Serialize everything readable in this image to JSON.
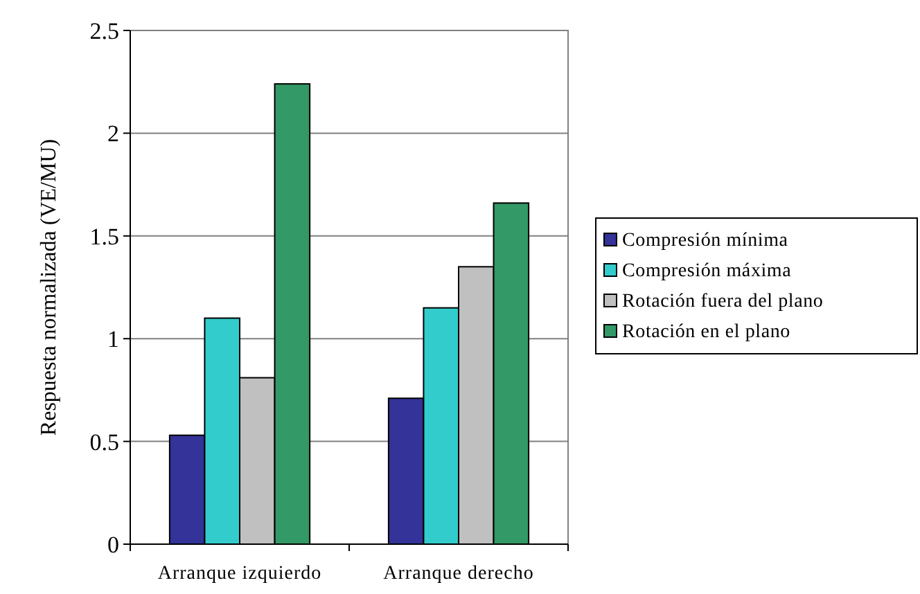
{
  "chart_data": {
    "type": "bar",
    "ylabel": "Respuesta normalizada (VE/MU)",
    "categories": [
      "Arranque izquierdo",
      "Arranque derecho"
    ],
    "series": [
      {
        "name": "Compresión mínima",
        "color": "#333399",
        "values": [
          0.53,
          0.71
        ]
      },
      {
        "name": "Compresión máxima",
        "color": "#33cccc",
        "values": [
          1.1,
          1.15
        ]
      },
      {
        "name": "Rotación fuera del plano",
        "color": "#c0c0c0",
        "values": [
          0.81,
          1.35
        ]
      },
      {
        "name": "Rotación en el plano",
        "color": "#339966",
        "values": [
          2.24,
          1.66
        ]
      }
    ],
    "ylim": [
      0,
      2.5
    ],
    "yticks": [
      0,
      0.5,
      1,
      1.5,
      2,
      2.5
    ],
    "grid": "y",
    "legend": "right"
  }
}
